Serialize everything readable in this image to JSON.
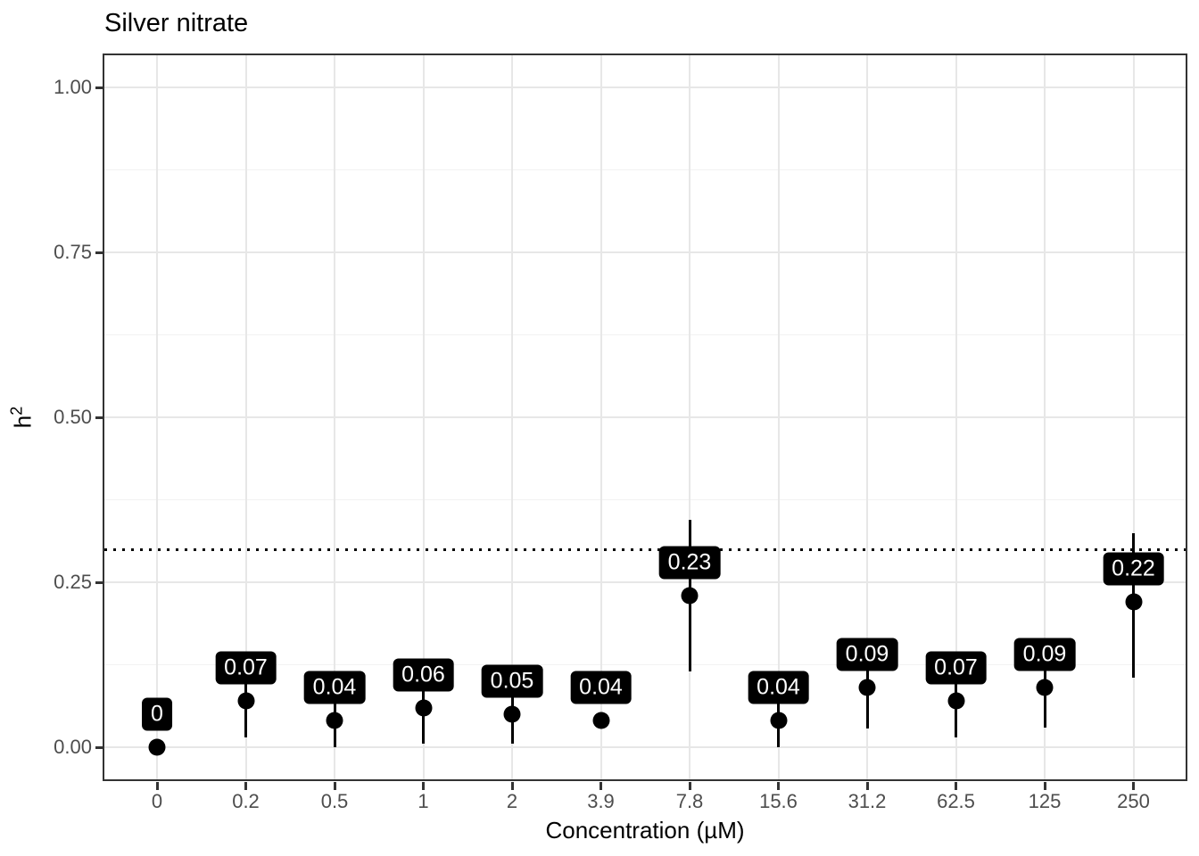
{
  "chart_data": {
    "type": "scatter",
    "title": "Silver nitrate",
    "xlabel": "Concentration (µM)",
    "ylabel": {
      "base": "h",
      "exponent": "2"
    },
    "categories": [
      "0",
      "0.2",
      "0.5",
      "1",
      "2",
      "3.9",
      "7.8",
      "15.6",
      "31.2",
      "62.5",
      "125",
      "250"
    ],
    "points": [
      {
        "category": "0",
        "value": 0.0,
        "label": "0",
        "err_lo": 0.0,
        "err_hi": 0.0
      },
      {
        "category": "0.2",
        "value": 0.07,
        "label": "0.07",
        "err_lo": 0.015,
        "err_hi": 0.12
      },
      {
        "category": "0.5",
        "value": 0.04,
        "label": "0.04",
        "err_lo": 0.0,
        "err_hi": 0.08
      },
      {
        "category": "1",
        "value": 0.06,
        "label": "0.06",
        "err_lo": 0.005,
        "err_hi": 0.11
      },
      {
        "category": "2",
        "value": 0.05,
        "label": "0.05",
        "err_lo": 0.005,
        "err_hi": 0.095
      },
      {
        "category": "3.9",
        "value": 0.04,
        "label": "0.04",
        "err_lo": 0.04,
        "err_hi": 0.04
      },
      {
        "category": "7.8",
        "value": 0.23,
        "label": "0.23",
        "err_lo": 0.115,
        "err_hi": 0.345
      },
      {
        "category": "15.6",
        "value": 0.04,
        "label": "0.04",
        "err_lo": 0.0,
        "err_hi": 0.08
      },
      {
        "category": "31.2",
        "value": 0.09,
        "label": "0.09",
        "err_lo": 0.028,
        "err_hi": 0.15
      },
      {
        "category": "62.5",
        "value": 0.07,
        "label": "0.07",
        "err_lo": 0.015,
        "err_hi": 0.125
      },
      {
        "category": "125",
        "value": 0.09,
        "label": "0.09",
        "err_lo": 0.03,
        "err_hi": 0.15
      },
      {
        "category": "250",
        "value": 0.22,
        "label": "0.22",
        "err_lo": 0.105,
        "err_hi": 0.325
      }
    ],
    "label_nudge_y": 0.05,
    "yticks": [
      {
        "label": "0.00",
        "value": 0.0
      },
      {
        "label": "0.25",
        "value": 0.25
      },
      {
        "label": "0.50",
        "value": 0.5
      },
      {
        "label": "0.75",
        "value": 0.75
      },
      {
        "label": "1.00",
        "value": 1.0
      }
    ],
    "minor_yticks": [
      0.125,
      0.375,
      0.625,
      0.875
    ],
    "reference_line": {
      "y": 0.3,
      "style": "dotted"
    },
    "ylim": [
      0,
      1
    ],
    "grid": true,
    "legend": "none",
    "colors": {
      "point": "#000000",
      "error_bar": "#000000",
      "label_bg": "#000000",
      "label_text": "#ffffff",
      "grid_major": "#e7e7e7",
      "grid_minor": "#f2f2f2",
      "axis_text": "#4d4d4d",
      "panel_border": "#333333",
      "reference_line": "#000000",
      "background": "#ffffff"
    }
  }
}
